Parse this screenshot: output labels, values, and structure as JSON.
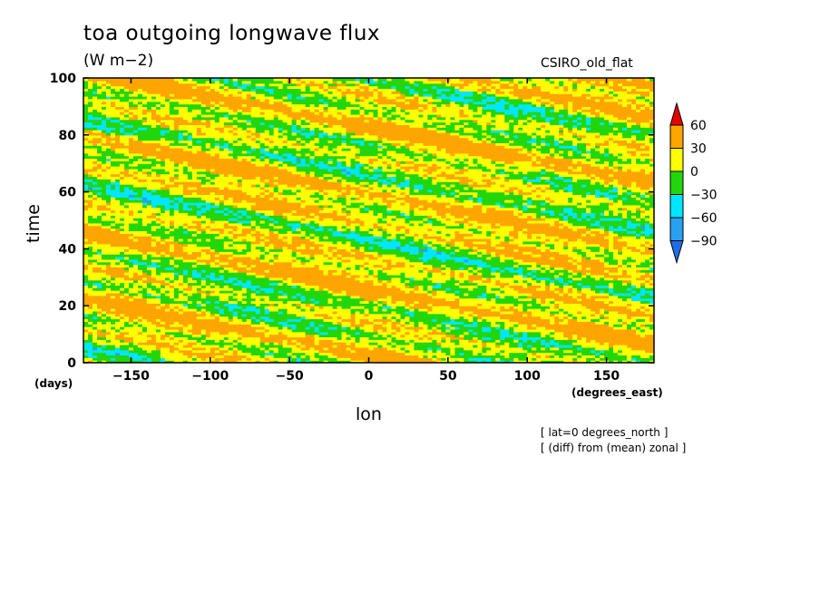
{
  "chart_data": {
    "type": "heatmap",
    "title": "toa outgoing longwave flux",
    "units": "(W m−2)",
    "model": "CSIRO_old_flat",
    "xlabel": "lon",
    "ylabel": "time",
    "xunits": "(degrees_east)",
    "yunits": "(days)",
    "xlim": [
      -180,
      180
    ],
    "ylim": [
      0,
      100
    ],
    "xticks": [
      -150,
      -100,
      -50,
      0,
      50,
      100,
      150
    ],
    "xtick_labels": [
      "−150",
      "−100",
      "−50",
      "0",
      "50",
      "100",
      "150"
    ],
    "yticks": [
      0,
      20,
      40,
      60,
      80,
      100
    ],
    "ytick_labels": [
      "0",
      "20",
      "40",
      "60",
      "80",
      "100"
    ],
    "colorbar": {
      "levels": [
        -90,
        -60,
        -30,
        0,
        30,
        60
      ],
      "labels": [
        "−90",
        "−60",
        "−30",
        "0",
        "30",
        "60"
      ],
      "colors": [
        "#1e6ee6",
        "#2aa0f0",
        "#00e6ff",
        "#22d60c",
        "#ffff00",
        "#ffa500",
        "#e60000"
      ]
    },
    "notes": [
      "[ lat=0 degrees_north ]",
      "[ (diff) from (mean) zonal ]"
    ],
    "pattern": "westward-propagating bands",
    "grid": false
  }
}
